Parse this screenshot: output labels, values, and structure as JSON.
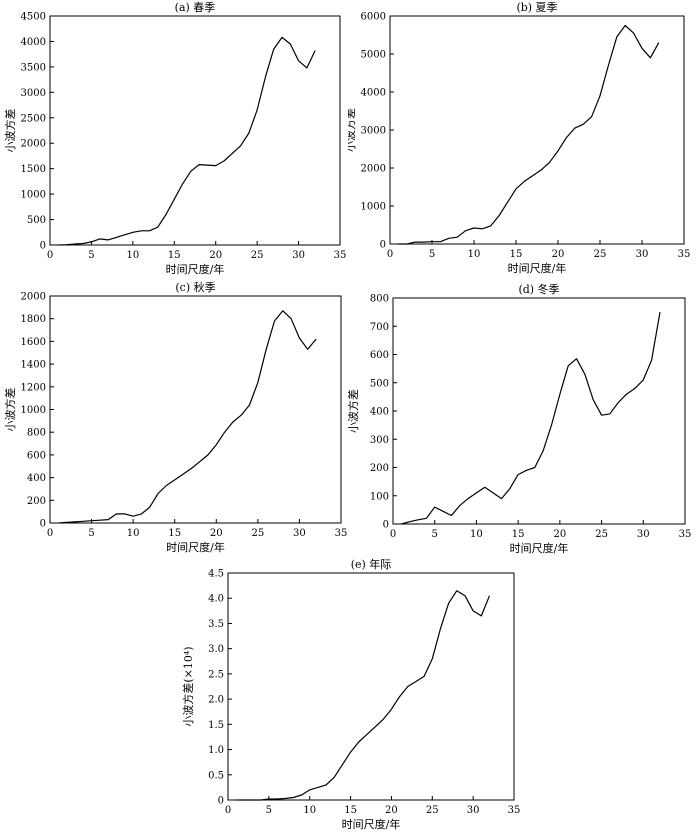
{
  "chart_data": [
    {
      "type": "line",
      "title": "(a) 春季",
      "xlabel": "时间尺度/年",
      "ylabel": "小波方差",
      "xlim": [
        0,
        35
      ],
      "ylim": [
        0,
        4500
      ],
      "xticks": [
        0,
        5,
        10,
        15,
        20,
        25,
        30,
        35
      ],
      "yticks": [
        0,
        500,
        1000,
        1500,
        2000,
        2500,
        3000,
        3500,
        4000,
        4500
      ],
      "grid": false,
      "series": [
        {
          "x": [
            1,
            2,
            3,
            4,
            5,
            6,
            7,
            8,
            9,
            10,
            11,
            12,
            13,
            14,
            15,
            16,
            17,
            18,
            19,
            20,
            21,
            22,
            23,
            24,
            25,
            26,
            27,
            28,
            29,
            30,
            31,
            32
          ],
          "y": [
            0,
            5,
            20,
            30,
            60,
            120,
            100,
            150,
            200,
            250,
            280,
            280,
            350,
            600,
            900,
            1200,
            1450,
            1580,
            1570,
            1560,
            1650,
            1800,
            1950,
            2200,
            2650,
            3300,
            3850,
            4080,
            3950,
            3620,
            3480,
            3820
          ]
        }
      ]
    },
    {
      "type": "line",
      "title": "(b) 夏季",
      "xlabel": "时间尺度/年",
      "ylabel": "小波方差",
      "xlim": [
        0,
        35
      ],
      "ylim": [
        0,
        6000
      ],
      "xticks": [
        0,
        5,
        10,
        15,
        20,
        25,
        30,
        35
      ],
      "yticks": [
        0,
        1000,
        2000,
        3000,
        4000,
        5000,
        6000
      ],
      "grid": false,
      "series": [
        {
          "x": [
            1,
            2,
            3,
            4,
            5,
            6,
            7,
            8,
            9,
            10,
            11,
            12,
            13,
            14,
            15,
            16,
            17,
            18,
            19,
            20,
            21,
            22,
            23,
            24,
            25,
            26,
            27,
            28,
            29,
            30,
            31,
            32
          ],
          "y": [
            0,
            0,
            50,
            50,
            60,
            60,
            150,
            180,
            350,
            420,
            400,
            480,
            750,
            1100,
            1450,
            1650,
            1800,
            1950,
            2150,
            2450,
            2800,
            3050,
            3150,
            3350,
            3900,
            4700,
            5450,
            5750,
            5550,
            5150,
            4900,
            5300
          ]
        }
      ]
    },
    {
      "type": "line",
      "title": "(c) 秋季",
      "xlabel": "时间尺度/年",
      "ylabel": "小波方差",
      "xlim": [
        0,
        35
      ],
      "ylim": [
        0,
        2000
      ],
      "xticks": [
        0,
        5,
        10,
        15,
        20,
        25,
        30,
        35
      ],
      "yticks": [
        0,
        200,
        400,
        600,
        800,
        1000,
        1200,
        1400,
        1600,
        1800,
        2000
      ],
      "grid": false,
      "series": [
        {
          "x": [
            1,
            2,
            3,
            4,
            5,
            6,
            7,
            8,
            9,
            10,
            11,
            12,
            13,
            14,
            15,
            16,
            17,
            18,
            19,
            20,
            21,
            22,
            23,
            24,
            25,
            26,
            27,
            28,
            29,
            30,
            31,
            32
          ],
          "y": [
            0,
            5,
            10,
            15,
            20,
            25,
            30,
            80,
            80,
            60,
            80,
            140,
            260,
            330,
            380,
            430,
            480,
            540,
            600,
            690,
            800,
            890,
            950,
            1040,
            1240,
            1530,
            1780,
            1870,
            1800,
            1630,
            1530,
            1620
          ]
        }
      ]
    },
    {
      "type": "line",
      "title": "(d) 冬季",
      "xlabel": "时间尺度/年",
      "ylabel": "小波方差",
      "xlim": [
        0,
        35
      ],
      "ylim": [
        0,
        800
      ],
      "xticks": [
        0,
        5,
        10,
        15,
        20,
        25,
        30,
        35
      ],
      "yticks": [
        0,
        100,
        200,
        300,
        400,
        500,
        600,
        700,
        800
      ],
      "grid": false,
      "series": [
        {
          "x": [
            1,
            2,
            3,
            4,
            5,
            6,
            7,
            8,
            9,
            10,
            11,
            12,
            13,
            14,
            15,
            16,
            17,
            18,
            19,
            20,
            21,
            22,
            23,
            24,
            25,
            26,
            27,
            28,
            29,
            30,
            31,
            32
          ],
          "y": [
            0,
            8,
            15,
            20,
            60,
            45,
            30,
            65,
            90,
            110,
            130,
            110,
            90,
            125,
            175,
            190,
            200,
            260,
            350,
            460,
            560,
            585,
            530,
            440,
            385,
            390,
            430,
            460,
            480,
            510,
            580,
            750
          ]
        }
      ]
    },
    {
      "type": "line",
      "title": "(e) 年际",
      "xlabel": "时间尺度/年",
      "ylabel": "小波方差(×10⁴)",
      "xlim": [
        0,
        35
      ],
      "ylim": [
        0,
        4.5
      ],
      "xticks": [
        0,
        5,
        10,
        15,
        20,
        25,
        30,
        35
      ],
      "yticks": [
        "0",
        "0.5",
        "1.0",
        "1.5",
        "2.0",
        "2.5",
        "3.0",
        "3.5",
        "4.0",
        "4.5"
      ],
      "grid": false,
      "series": [
        {
          "x": [
            1,
            2,
            3,
            4,
            5,
            6,
            7,
            8,
            9,
            10,
            11,
            12,
            13,
            14,
            15,
            16,
            17,
            18,
            19,
            20,
            21,
            22,
            23,
            24,
            25,
            26,
            27,
            28,
            29,
            30,
            31,
            32
          ],
          "y": [
            0,
            0,
            0,
            0,
            0.02,
            0.02,
            0.03,
            0.05,
            0.1,
            0.2,
            0.25,
            0.3,
            0.45,
            0.7,
            0.95,
            1.15,
            1.3,
            1.45,
            1.6,
            1.8,
            2.05,
            2.25,
            2.35,
            2.45,
            2.8,
            3.4,
            3.9,
            4.15,
            4.05,
            3.75,
            3.65,
            4.05
          ]
        }
      ]
    }
  ]
}
